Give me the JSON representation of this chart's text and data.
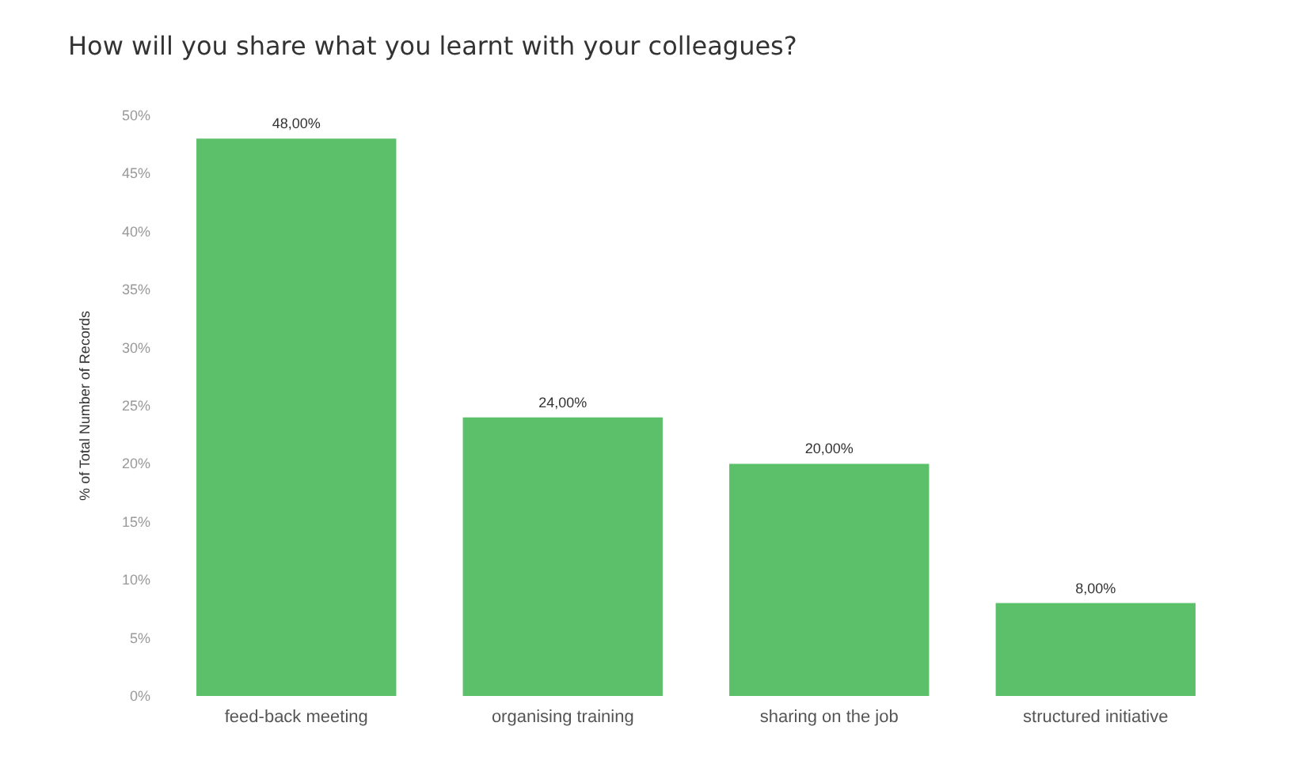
{
  "chart_data": {
    "type": "bar",
    "title": "How will you share what you learnt with your colleagues?",
    "ylabel": "% of Total Number of Records",
    "categories": [
      "feed-back meeting",
      "organising training",
      "sharing on the job",
      "structured initiative"
    ],
    "values": [
      48,
      24,
      20,
      8
    ],
    "color": "#5cbf6a",
    "value_labels": [
      "48,00%",
      "24,00%",
      "20,00%",
      "8,00%"
    ],
    "ylim": [
      0,
      50
    ],
    "yticks": [
      {
        "value": 0,
        "label": "0%"
      },
      {
        "value": 5,
        "label": "5%"
      },
      {
        "value": 10,
        "label": "10%"
      },
      {
        "value": 15,
        "label": "15%"
      },
      {
        "value": 20,
        "label": "20%"
      },
      {
        "value": 25,
        "label": "25%"
      },
      {
        "value": 30,
        "label": "30%"
      },
      {
        "value": 35,
        "label": "35%"
      },
      {
        "value": 40,
        "label": "40%"
      },
      {
        "value": 45,
        "label": "45%"
      },
      {
        "value": 50,
        "label": "50%"
      }
    ],
    "grid": false
  }
}
